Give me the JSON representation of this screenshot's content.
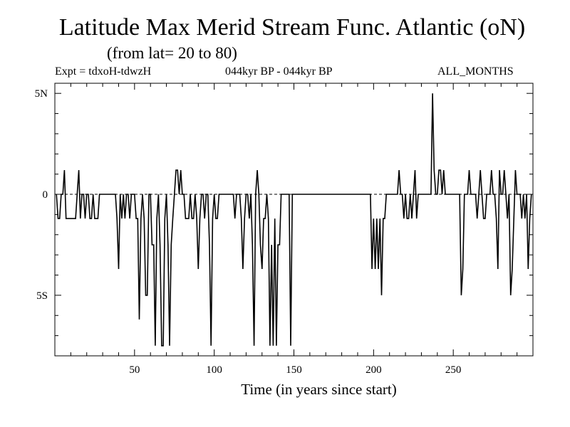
{
  "header": {
    "title": "Latitude Max Merid Stream Func. Atlantic (oN)",
    "subtitle": "(from lat= 20 to 80)",
    "experiment": "Expt = tdxoH-tdwzH",
    "period": "044kyr BP - 044kyr BP",
    "season": "ALL_MONTHS"
  },
  "chart_data": {
    "type": "line",
    "title": "Latitude Max Merid Stream Func. Atlantic (oN)",
    "subtitle": "(from lat= 20 to 80)",
    "xlabel": "Time (in years since start)",
    "ylabel": "",
    "xlim": [
      0,
      300
    ],
    "ylim": [
      -8,
      5.5
    ],
    "xticks": [
      50,
      100,
      150,
      200,
      250
    ],
    "xtick_labels": [
      "50",
      "100",
      "150",
      "200",
      "250"
    ],
    "yticks": [
      5,
      0,
      -5
    ],
    "ytick_labels": [
      "5N",
      "0",
      "5S"
    ],
    "grid": false,
    "series": [
      {
        "values": [
          [
            1,
            0
          ],
          [
            2,
            -1.2
          ],
          [
            3,
            -1.2
          ],
          [
            4,
            0
          ],
          [
            5,
            0
          ],
          [
            6,
            1.2
          ],
          [
            7,
            -1.2
          ],
          [
            8,
            -1.2
          ],
          [
            9,
            -1.2
          ],
          [
            10,
            -1.2
          ],
          [
            11,
            -1.2
          ],
          [
            12,
            -1.2
          ],
          [
            13,
            -1.2
          ],
          [
            14,
            0
          ],
          [
            15,
            1.2
          ],
          [
            16,
            -1.2
          ],
          [
            17,
            0
          ],
          [
            18,
            0
          ],
          [
            19,
            -1.2
          ],
          [
            20,
            0
          ],
          [
            21,
            0
          ],
          [
            22,
            -1.2
          ],
          [
            23,
            -1.2
          ],
          [
            24,
            0
          ],
          [
            25,
            -1.2
          ],
          [
            26,
            -1.2
          ],
          [
            27,
            -1.2
          ],
          [
            28,
            0
          ],
          [
            29,
            0
          ],
          [
            30,
            0
          ],
          [
            31,
            0
          ],
          [
            32,
            0
          ],
          [
            33,
            0
          ],
          [
            34,
            0
          ],
          [
            35,
            0
          ],
          [
            36,
            0
          ],
          [
            37,
            0
          ],
          [
            38,
            0
          ],
          [
            39,
            -1.2
          ],
          [
            40,
            -3.7
          ],
          [
            41,
            0
          ],
          [
            42,
            -1.2
          ],
          [
            43,
            0
          ],
          [
            44,
            -1.2
          ],
          [
            45,
            0
          ],
          [
            46,
            0
          ],
          [
            47,
            -1.2
          ],
          [
            48,
            0
          ],
          [
            49,
            0
          ],
          [
            50,
            0
          ],
          [
            51,
            -1.2
          ],
          [
            52,
            -1.2
          ],
          [
            53,
            -6.2
          ],
          [
            54,
            -1.2
          ],
          [
            55,
            0
          ],
          [
            56,
            -1.2
          ],
          [
            57,
            -5
          ],
          [
            58,
            -5
          ],
          [
            59,
            0
          ],
          [
            60,
            0
          ],
          [
            61,
            -2.5
          ],
          [
            62,
            -2.5
          ],
          [
            63,
            -7.5
          ],
          [
            64,
            -1.2
          ],
          [
            65,
            0
          ],
          [
            66,
            -2.5
          ],
          [
            67,
            -7.5
          ],
          [
            68,
            -7.5
          ],
          [
            69,
            -1.2
          ],
          [
            70,
            0
          ],
          [
            71,
            -2.5
          ],
          [
            72,
            -7.5
          ],
          [
            73,
            -2.5
          ],
          [
            74,
            -1.2
          ],
          [
            75,
            0
          ],
          [
            76,
            1.2
          ],
          [
            77,
            1.2
          ],
          [
            78,
            0
          ],
          [
            79,
            1.2
          ],
          [
            80,
            0
          ],
          [
            81,
            0
          ],
          [
            82,
            -1.2
          ],
          [
            83,
            -1.2
          ],
          [
            84,
            -1.2
          ],
          [
            85,
            0
          ],
          [
            86,
            -1.2
          ],
          [
            87,
            -1.2
          ],
          [
            88,
            0
          ],
          [
            89,
            -1.2
          ],
          [
            90,
            -3.7
          ],
          [
            91,
            -1.2
          ],
          [
            92,
            0
          ],
          [
            93,
            0
          ],
          [
            94,
            -1.2
          ],
          [
            95,
            0
          ],
          [
            96,
            0
          ],
          [
            97,
            -2.5
          ],
          [
            98,
            -7.5
          ],
          [
            99,
            -1.2
          ],
          [
            100,
            0
          ],
          [
            101,
            -1.2
          ],
          [
            102,
            -1.2
          ],
          [
            103,
            0
          ],
          [
            104,
            0
          ],
          [
            105,
            0
          ],
          [
            106,
            0
          ],
          [
            107,
            0
          ],
          [
            108,
            0
          ],
          [
            109,
            0
          ],
          [
            110,
            0
          ],
          [
            111,
            0
          ],
          [
            112,
            0
          ],
          [
            113,
            -1.2
          ],
          [
            114,
            0
          ],
          [
            115,
            0
          ],
          [
            116,
            0
          ],
          [
            117,
            -1.2
          ],
          [
            118,
            -3.7
          ],
          [
            119,
            -1.2
          ],
          [
            120,
            0
          ],
          [
            121,
            0
          ],
          [
            122,
            -1.2
          ],
          [
            123,
            0
          ],
          [
            124,
            -2.5
          ],
          [
            125,
            -7.5
          ],
          [
            126,
            0
          ],
          [
            127,
            1.2
          ],
          [
            128,
            0
          ],
          [
            129,
            -2.5
          ],
          [
            130,
            -3.7
          ],
          [
            131,
            -1.2
          ],
          [
            132,
            -1.2
          ],
          [
            133,
            0
          ],
          [
            134,
            -1.2
          ],
          [
            135,
            -7.5
          ],
          [
            136,
            -2.5
          ],
          [
            137,
            -7.5
          ],
          [
            138,
            -1.2
          ],
          [
            139,
            -7.5
          ],
          [
            140,
            -2.5
          ],
          [
            141,
            -2.5
          ],
          [
            142,
            0
          ],
          [
            143,
            0
          ],
          [
            144,
            0
          ],
          [
            145,
            0
          ],
          [
            146,
            0
          ],
          [
            147,
            0
          ],
          [
            148,
            -7.5
          ],
          [
            149,
            0
          ],
          [
            150,
            0
          ],
          [
            151,
            0
          ],
          [
            152,
            0
          ],
          [
            153,
            0
          ],
          [
            154,
            0
          ],
          [
            155,
            0
          ],
          [
            156,
            0
          ],
          [
            157,
            0
          ],
          [
            158,
            0
          ],
          [
            159,
            0
          ],
          [
            160,
            0
          ],
          [
            161,
            0
          ],
          [
            162,
            0
          ],
          [
            163,
            0
          ],
          [
            164,
            0
          ],
          [
            165,
            0
          ],
          [
            166,
            0
          ],
          [
            167,
            0
          ],
          [
            168,
            0
          ],
          [
            169,
            0
          ],
          [
            170,
            0
          ],
          [
            171,
            0
          ],
          [
            172,
            0
          ],
          [
            173,
            0
          ],
          [
            174,
            0
          ],
          [
            175,
            0
          ],
          [
            176,
            0
          ],
          [
            177,
            0
          ],
          [
            178,
            0
          ],
          [
            179,
            0
          ],
          [
            180,
            0
          ],
          [
            181,
            0
          ],
          [
            182,
            0
          ],
          [
            183,
            0
          ],
          [
            184,
            0
          ],
          [
            185,
            0
          ],
          [
            186,
            0
          ],
          [
            187,
            0
          ],
          [
            188,
            0
          ],
          [
            189,
            0
          ],
          [
            190,
            0
          ],
          [
            191,
            0
          ],
          [
            192,
            0
          ],
          [
            193,
            0
          ],
          [
            194,
            0
          ],
          [
            195,
            0
          ],
          [
            196,
            0
          ],
          [
            197,
            0
          ],
          [
            198,
            0
          ],
          [
            199,
            -3.7
          ],
          [
            200,
            -1.2
          ],
          [
            201,
            -3.7
          ],
          [
            202,
            -1.2
          ],
          [
            203,
            -3.7
          ],
          [
            204,
            -1.2
          ],
          [
            205,
            -5
          ],
          [
            206,
            -1.2
          ],
          [
            207,
            -1.2
          ],
          [
            208,
            0
          ],
          [
            209,
            0
          ],
          [
            210,
            0
          ],
          [
            211,
            0
          ],
          [
            212,
            0
          ],
          [
            213,
            0
          ],
          [
            214,
            0
          ],
          [
            215,
            0
          ],
          [
            216,
            1.2
          ],
          [
            217,
            0
          ],
          [
            218,
            0
          ],
          [
            219,
            -1.2
          ],
          [
            220,
            0
          ],
          [
            221,
            -1.2
          ],
          [
            222,
            -1.2
          ],
          [
            223,
            0
          ],
          [
            224,
            -1.2
          ],
          [
            225,
            0
          ],
          [
            226,
            1.2
          ],
          [
            227,
            -1.2
          ],
          [
            228,
            0
          ],
          [
            229,
            0
          ],
          [
            230,
            0
          ],
          [
            231,
            0
          ],
          [
            232,
            0
          ],
          [
            233,
            0
          ],
          [
            234,
            0
          ],
          [
            235,
            0
          ],
          [
            236,
            0
          ],
          [
            237,
            5
          ],
          [
            238,
            1.2
          ],
          [
            239,
            0
          ],
          [
            240,
            0
          ],
          [
            241,
            1.2
          ],
          [
            242,
            1.2
          ],
          [
            243,
            0
          ],
          [
            244,
            1.2
          ],
          [
            245,
            0
          ],
          [
            246,
            0
          ],
          [
            247,
            0
          ],
          [
            248,
            0
          ],
          [
            249,
            0
          ],
          [
            250,
            0
          ],
          [
            251,
            0
          ],
          [
            252,
            0
          ],
          [
            253,
            0
          ],
          [
            254,
            0
          ],
          [
            255,
            -5
          ],
          [
            256,
            -3.7
          ],
          [
            257,
            0
          ],
          [
            258,
            0
          ],
          [
            259,
            0
          ],
          [
            260,
            1.2
          ],
          [
            261,
            0
          ],
          [
            262,
            0
          ],
          [
            263,
            0
          ],
          [
            264,
            0
          ],
          [
            265,
            -1.2
          ],
          [
            266,
            0
          ],
          [
            267,
            1.2
          ],
          [
            268,
            0
          ],
          [
            269,
            -1.2
          ],
          [
            270,
            -1.2
          ],
          [
            271,
            0
          ],
          [
            272,
            0
          ],
          [
            273,
            0
          ],
          [
            274,
            1.2
          ],
          [
            275,
            0
          ],
          [
            276,
            0
          ],
          [
            277,
            -1.2
          ],
          [
            278,
            -3.7
          ],
          [
            279,
            1.2
          ],
          [
            280,
            0
          ],
          [
            281,
            0
          ],
          [
            282,
            1.2
          ],
          [
            283,
            0
          ],
          [
            284,
            -1.2
          ],
          [
            285,
            0
          ],
          [
            286,
            -5
          ],
          [
            287,
            -3.7
          ],
          [
            288,
            -1.2
          ],
          [
            289,
            1.2
          ],
          [
            290,
            0
          ],
          [
            291,
            0
          ],
          [
            292,
            0
          ],
          [
            293,
            -1.2
          ],
          [
            294,
            0
          ],
          [
            295,
            -1.2
          ],
          [
            296,
            0
          ],
          [
            297,
            -3.7
          ],
          [
            298,
            -1.2
          ],
          [
            299,
            0
          ]
        ]
      }
    ]
  }
}
